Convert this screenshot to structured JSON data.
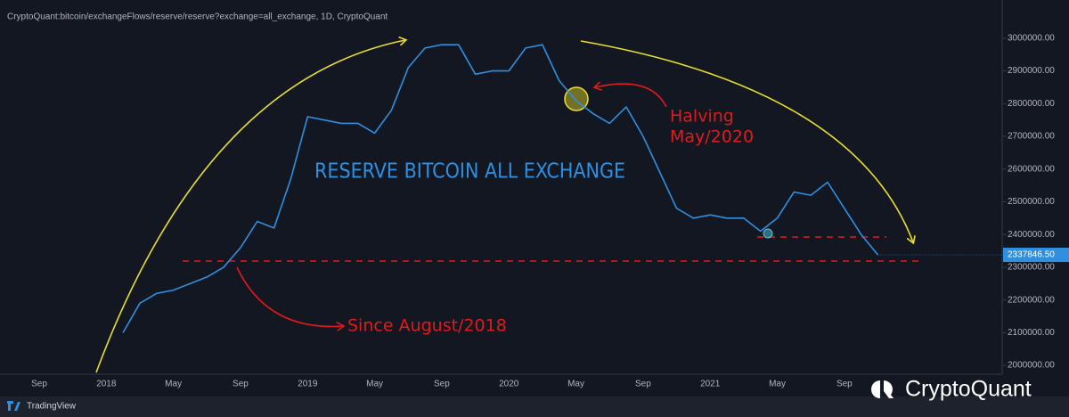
{
  "header": "CryptoQuant:bitcoin/exchangeFlows/reserve/reserve?exchange=all_exchange, 1D, CryptoQuant",
  "chart_data": {
    "type": "line",
    "title": "RESERVE BITCOIN ALL EXCHANGE",
    "annotations": [
      "Halving",
      "May/2020",
      "Since August/2018"
    ],
    "categories": [
      "Sep",
      null,
      null,
      null,
      "2018",
      null,
      null,
      null,
      "May",
      null,
      null,
      null,
      "Sep",
      null,
      null,
      null,
      "2019",
      null,
      null,
      null,
      "May",
      null,
      null,
      null,
      "Sep",
      null,
      null,
      null,
      "2020",
      null,
      null,
      null,
      "May",
      null,
      null,
      null,
      "Sep",
      null,
      null,
      null,
      "2021",
      null,
      null,
      null,
      "May",
      null,
      null,
      null,
      "Sep",
      null,
      null
    ],
    "series": [
      {
        "color": "#2f8fe0",
        "values": [
          null,
          null,
          null,
          null,
          null,
          2100000,
          2190000,
          2220000,
          2230000,
          2250000,
          2270000,
          2300000,
          2360000,
          2440000,
          2420000,
          2570000,
          2760000,
          2750000,
          2740000,
          2740000,
          2710000,
          2780000,
          2910000,
          2970000,
          2980000,
          2980000,
          2890000,
          2900000,
          2900000,
          2970000,
          2980000,
          2870000,
          2810000,
          2770000,
          2740000,
          2790000,
          2700000,
          2590000,
          2480000,
          2450000,
          2460000,
          2450000,
          2450000,
          2410000,
          2450000,
          2530000,
          2520000,
          2560000,
          2480000,
          2400000,
          2337846.5
        ],
        "value_labels": [
          null,
          null,
          null,
          null,
          null,
          null,
          null,
          null,
          null,
          null,
          null,
          null,
          null,
          null,
          null,
          null,
          null,
          null,
          null,
          null,
          null,
          null,
          null,
          null,
          null,
          null,
          null,
          null,
          null,
          null,
          null,
          null,
          null,
          null,
          null,
          null,
          null,
          null,
          null,
          null,
          null,
          null,
          null,
          null,
          null,
          null,
          null,
          null,
          null,
          null,
          "2337846.50"
        ]
      }
    ],
    "ylim": [
      1973000,
      3095000
    ],
    "yticks": [
      {
        "value": 2000000,
        "label": "2000000.00"
      },
      {
        "value": 2100000,
        "label": "2100000.00"
      },
      {
        "value": 2200000,
        "label": "2200000.00"
      },
      {
        "value": 2300000,
        "label": "2300000.00"
      },
      {
        "value": 2400000,
        "label": "2400000.00"
      },
      {
        "value": 2500000,
        "label": "2500000.00"
      },
      {
        "value": 2600000,
        "label": "2600000.00"
      },
      {
        "value": 2700000,
        "label": "2700000.00"
      },
      {
        "value": 2800000,
        "label": "2800000.00"
      },
      {
        "value": 2900000,
        "label": "2900000.00"
      },
      {
        "value": 3000000,
        "label": "3000000.00"
      }
    ]
  },
  "footer": {
    "platform": "TradingView",
    "brand": "CryptoQuant"
  }
}
